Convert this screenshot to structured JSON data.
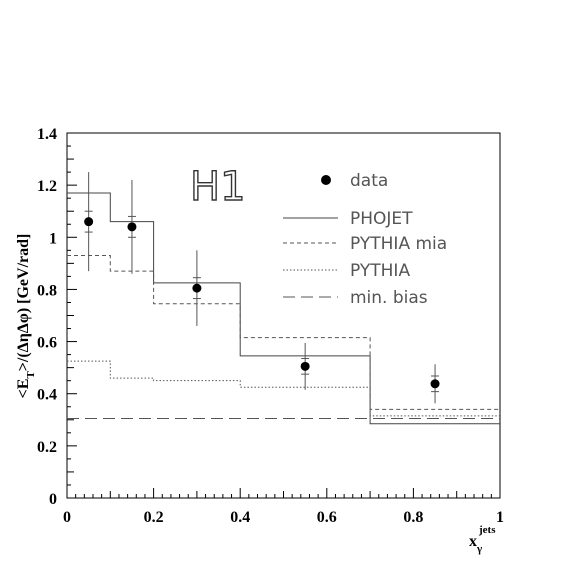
{
  "chart_data": {
    "type": "line",
    "title": "",
    "experiment_label": "H1",
    "ylabel": "<E_T>/(ΔηΔφ) [GeV/rad]",
    "xlabel": "x_γ^jets",
    "xlim": [
      0,
      1
    ],
    "ylim": [
      0,
      1.4
    ],
    "x_ticks": [
      0,
      0.2,
      0.4,
      0.6,
      0.8,
      1
    ],
    "x_tick_labels": [
      "0",
      "0.2",
      "0.4",
      "0.6",
      "0.8",
      "1"
    ],
    "y_ticks": [
      0,
      0.2,
      0.4,
      0.6,
      0.8,
      1,
      1.2,
      1.4
    ],
    "y_tick_labels": [
      "0",
      "0.2",
      "0.4",
      "0.6",
      "0.8",
      "1",
      "1.2",
      "1.4"
    ],
    "bin_edges": [
      0,
      0.1,
      0.2,
      0.4,
      0.7,
      1
    ],
    "legend_position": "top-right",
    "data": {
      "name": "data",
      "x": [
        0.05,
        0.15,
        0.3,
        0.55,
        0.85
      ],
      "y": [
        1.06,
        1.04,
        0.805,
        0.505,
        0.438
      ],
      "y_err_stat": [
        0.04,
        0.04,
        0.04,
        0.03,
        0.03
      ],
      "y_err_tot": [
        0.19,
        0.18,
        0.145,
        0.09,
        0.075
      ]
    },
    "series": [
      {
        "name": "PHOJET",
        "style": "solid",
        "color": "#444444",
        "values": [
          1.17,
          1.06,
          0.825,
          0.545,
          0.285
        ]
      },
      {
        "name": "PYTHIA mia",
        "style": "dashed",
        "color": "#555555",
        "values": [
          0.93,
          0.87,
          0.745,
          0.615,
          0.34
        ]
      },
      {
        "name": "PYTHIA",
        "style": "dotted",
        "color": "#555555",
        "values": [
          0.525,
          0.46,
          0.45,
          0.425,
          0.315
        ]
      },
      {
        "name": "min. bias",
        "style": "longdash",
        "color": "#555555",
        "values": [
          0.305,
          0.305,
          0.305,
          0.305,
          0.305
        ]
      }
    ]
  }
}
